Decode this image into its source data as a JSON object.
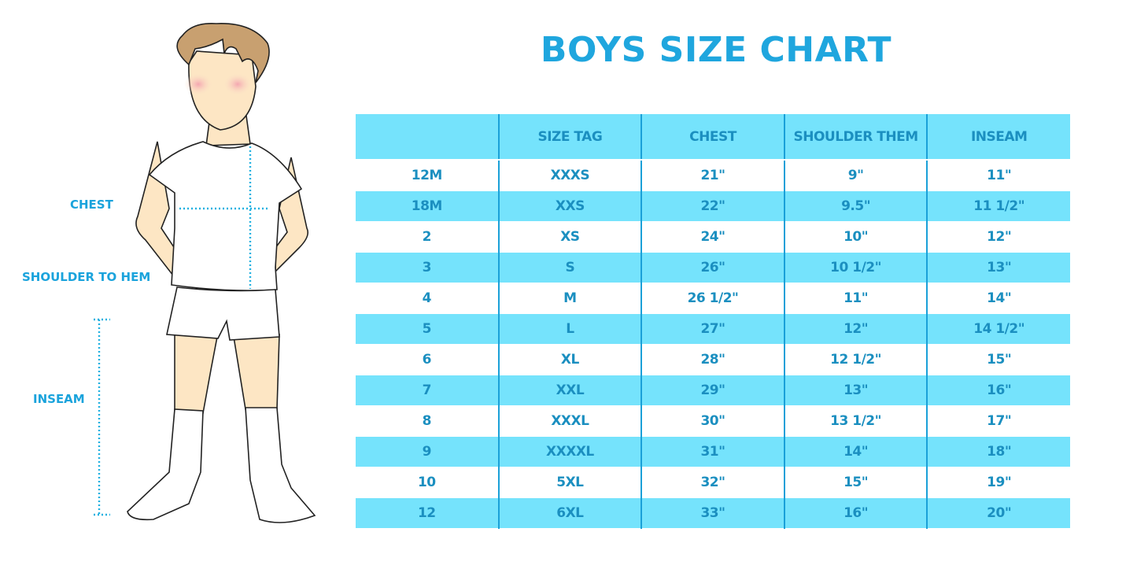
{
  "title": "BOYS SIZE CHART",
  "measure_labels": {
    "chest": "CHEST",
    "shoulder": "SHOULDER TO HEM",
    "inseam": "INSEAM"
  },
  "colors": {
    "accent": "#1fa6de",
    "row_fill": "#75e3fc",
    "text": "#1b8fc0"
  },
  "table": {
    "headers": [
      "",
      "SIZE TAG",
      "CHEST",
      "SHOULDER THEM",
      "INSEAM"
    ],
    "rows": [
      [
        "12M",
        "XXXS",
        "21\"",
        "9\"",
        "11\""
      ],
      [
        "18M",
        "XXS",
        "22\"",
        "9.5\"",
        "11 1/2\""
      ],
      [
        "2",
        "XS",
        "24\"",
        "10\"",
        "12\""
      ],
      [
        "3",
        "S",
        "26\"",
        "10 1/2\"",
        "13\""
      ],
      [
        "4",
        "M",
        "26 1/2\"",
        "11\"",
        "14\""
      ],
      [
        "5",
        "L",
        "27\"",
        "12\"",
        "14 1/2\""
      ],
      [
        "6",
        "XL",
        "28\"",
        "12 1/2\"",
        "15\""
      ],
      [
        "7",
        "XXL",
        "29\"",
        "13\"",
        "16\""
      ],
      [
        "8",
        "XXXL",
        "30\"",
        "13 1/2\"",
        "17\""
      ],
      [
        "9",
        "XXXXL",
        "31\"",
        "14\"",
        "18\""
      ],
      [
        "10",
        "5XL",
        "32\"",
        "15\"",
        "19\""
      ],
      [
        "12",
        "6XL",
        "33\"",
        "16\"",
        "20\""
      ]
    ]
  }
}
